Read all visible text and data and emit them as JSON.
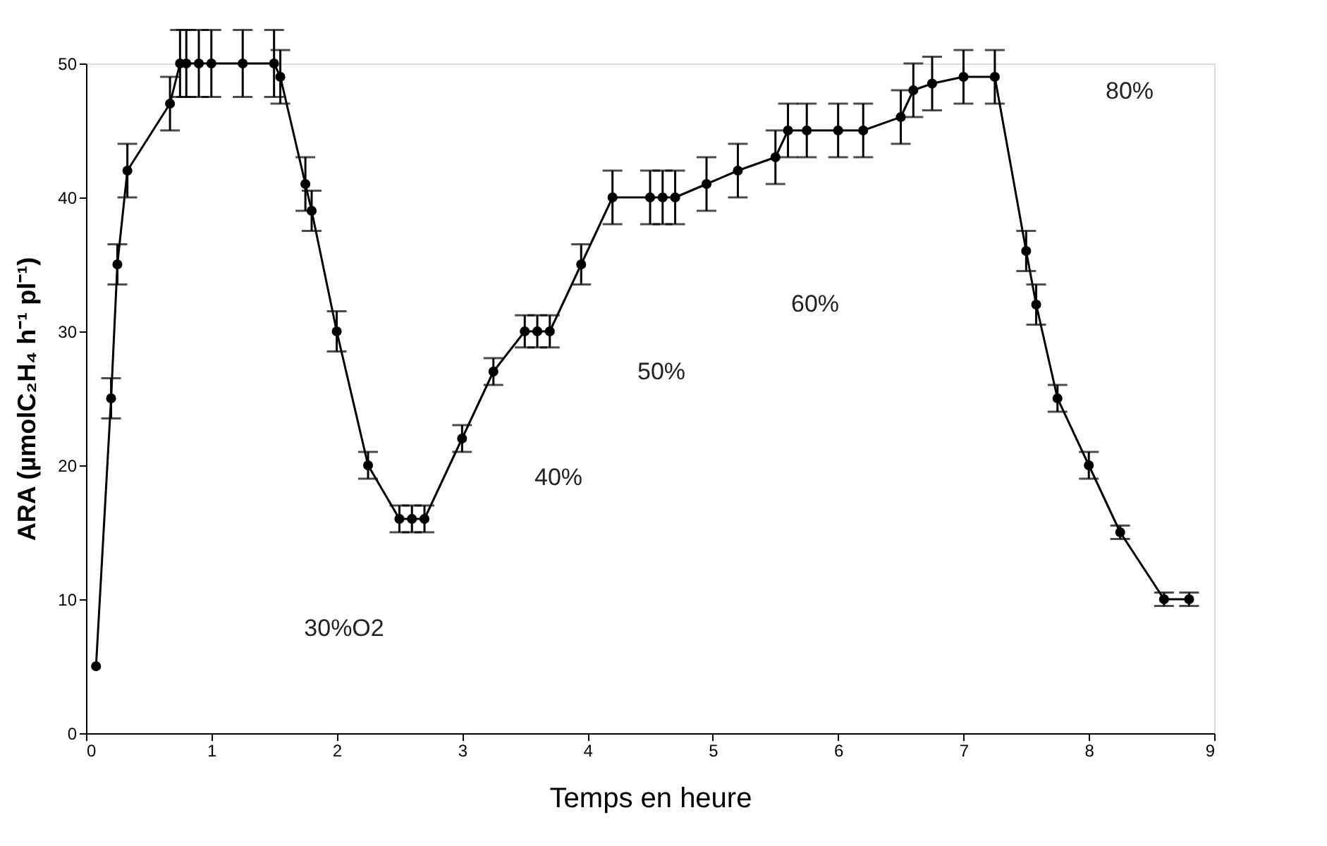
{
  "chart_data": {
    "type": "line",
    "xlabel": "Temps en heure",
    "ylabel": "ARA (µmolC₂H₄ h⁻¹ pl⁻¹)",
    "x": [
      0.08,
      0.2,
      0.25,
      0.33,
      0.67,
      0.75,
      0.8,
      0.9,
      1.0,
      1.25,
      1.5,
      1.55,
      1.75,
      1.8,
      2.0,
      2.25,
      2.5,
      2.6,
      2.7,
      3.0,
      3.25,
      3.5,
      3.6,
      3.7,
      3.95,
      4.2,
      4.5,
      4.6,
      4.7,
      4.95,
      5.2,
      5.5,
      5.6,
      5.75,
      6.0,
      6.2,
      6.5,
      6.6,
      6.75,
      7.0,
      7.25,
      7.5,
      7.58,
      7.75,
      8.0,
      8.25,
      8.6,
      8.8
    ],
    "series": [
      {
        "color": "#000000",
        "values": [
          5,
          25,
          35,
          42,
          47,
          50,
          50,
          50,
          50,
          50,
          50,
          49,
          41,
          39,
          30,
          20,
          16,
          16,
          16,
          22,
          27,
          30,
          30,
          30,
          35,
          40,
          40,
          40,
          40,
          41,
          42,
          43,
          45,
          45,
          45,
          45,
          46,
          48,
          48.5,
          49,
          49,
          36,
          32,
          25,
          20,
          15,
          10,
          10
        ],
        "errors": [
          null,
          1.5,
          1.5,
          2,
          2,
          2.5,
          2.5,
          2.5,
          2.5,
          2.5,
          2.5,
          2,
          2,
          1.5,
          1.5,
          1,
          1,
          1,
          1,
          1,
          1,
          1.2,
          1.2,
          1.2,
          1.5,
          2,
          2,
          2,
          2,
          2,
          2,
          2,
          2,
          2,
          2,
          2,
          2,
          2,
          2,
          2,
          2,
          1.5,
          1.5,
          1,
          1,
          0.5,
          0.5,
          0.5
        ]
      }
    ],
    "xlim": [
      0,
      9
    ],
    "xticks": [
      0,
      1,
      2,
      3,
      4,
      5,
      6,
      7,
      8,
      9
    ],
    "ylim": [
      0,
      50
    ],
    "yticks": [
      0,
      10,
      20,
      30,
      40,
      50
    ],
    "grid": false,
    "marker": "circle",
    "line_style": "solid",
    "annotations": [
      "30%O2",
      "40%",
      "50%",
      "60%",
      "80%"
    ]
  }
}
